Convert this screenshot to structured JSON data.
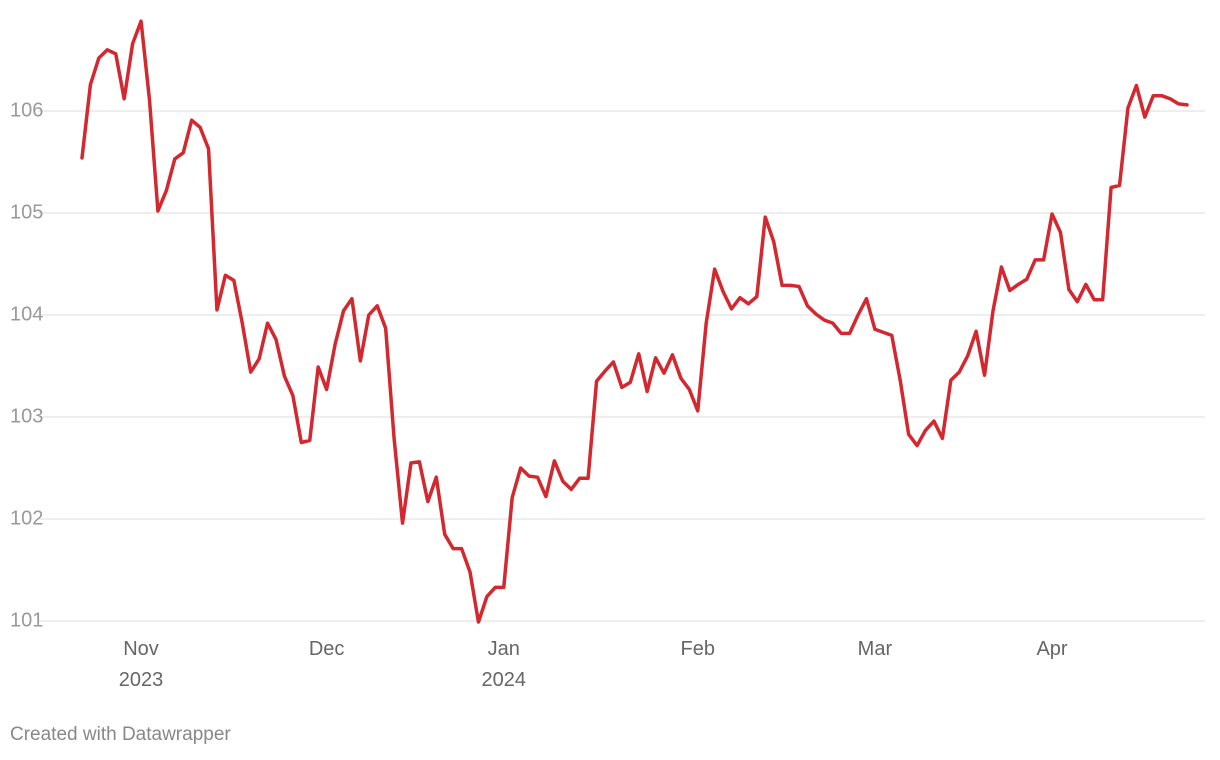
{
  "chart_data": {
    "type": "line",
    "categories": [
      null,
      null,
      null,
      null,
      null,
      null,
      null,
      "Nov\n2023",
      null,
      null,
      null,
      null,
      null,
      null,
      null,
      null,
      null,
      null,
      null,
      null,
      null,
      null,
      null,
      null,
      null,
      null,
      null,
      null,
      null,
      "Dec",
      null,
      null,
      null,
      null,
      null,
      null,
      null,
      null,
      null,
      null,
      null,
      null,
      null,
      null,
      null,
      null,
      null,
      null,
      null,
      null,
      "Jan\n2024",
      null,
      null,
      null,
      null,
      null,
      null,
      null,
      null,
      null,
      null,
      null,
      null,
      null,
      null,
      null,
      null,
      null,
      null,
      null,
      null,
      null,
      null,
      "Feb",
      null,
      null,
      null,
      null,
      null,
      null,
      null,
      null,
      null,
      null,
      null,
      null,
      null,
      null,
      null,
      null,
      null,
      null,
      null,
      null,
      "Mar",
      null,
      null,
      null,
      null,
      null,
      null,
      null,
      null,
      null,
      null,
      null,
      null,
      null,
      null,
      null,
      null,
      null,
      null,
      null,
      null,
      "Apr",
      null,
      null,
      null,
      null,
      null,
      null,
      null,
      null,
      null,
      null,
      null,
      null,
      null,
      null,
      null,
      null
    ],
    "values": [
      105.54,
      106.26,
      106.52,
      106.6,
      106.56,
      106.12,
      106.66,
      106.88,
      106.11,
      105.02,
      105.22,
      105.53,
      105.59,
      105.91,
      105.84,
      105.63,
      104.05,
      104.39,
      104.34,
      103.92,
      103.44,
      103.57,
      103.92,
      103.76,
      103.4,
      103.21,
      102.75,
      102.77,
      103.49,
      103.27,
      103.71,
      104.04,
      104.16,
      103.55,
      104.0,
      104.09,
      103.87,
      102.79,
      101.96,
      102.55,
      102.56,
      102.17,
      102.41,
      101.85,
      101.71,
      101.71,
      101.48,
      100.99,
      101.24,
      101.33,
      101.33,
      102.21,
      102.5,
      102.42,
      102.41,
      102.22,
      102.57,
      102.37,
      102.29,
      102.4,
      102.4,
      103.35,
      103.45,
      103.54,
      103.29,
      103.34,
      103.62,
      103.25,
      103.58,
      103.43,
      103.61,
      103.38,
      103.27,
      103.06,
      103.92,
      104.45,
      104.23,
      104.06,
      104.17,
      104.11,
      104.18,
      104.96,
      104.72,
      104.29,
      104.29,
      104.28,
      104.09,
      104.01,
      103.95,
      103.92,
      103.82,
      103.82,
      104.0,
      104.16,
      103.86,
      103.83,
      103.8,
      103.36,
      102.83,
      102.72,
      102.87,
      102.96,
      102.79,
      103.36,
      103.44,
      103.6,
      103.84,
      103.41,
      104.04,
      104.47,
      104.24,
      104.3,
      104.35,
      104.54,
      104.54,
      104.99,
      104.81,
      104.25,
      104.13,
      104.3,
      104.15,
      104.15,
      105.25,
      105.27,
      106.03,
      106.25,
      105.94,
      106.15,
      106.15,
      106.12,
      106.07,
      106.06
    ],
    "color": "#d3282f",
    "ylim": [
      100.9,
      107
    ],
    "yticks": [
      101,
      102,
      103,
      104,
      105,
      106
    ],
    "grid": true,
    "credit": "Created with Datawrapper"
  }
}
